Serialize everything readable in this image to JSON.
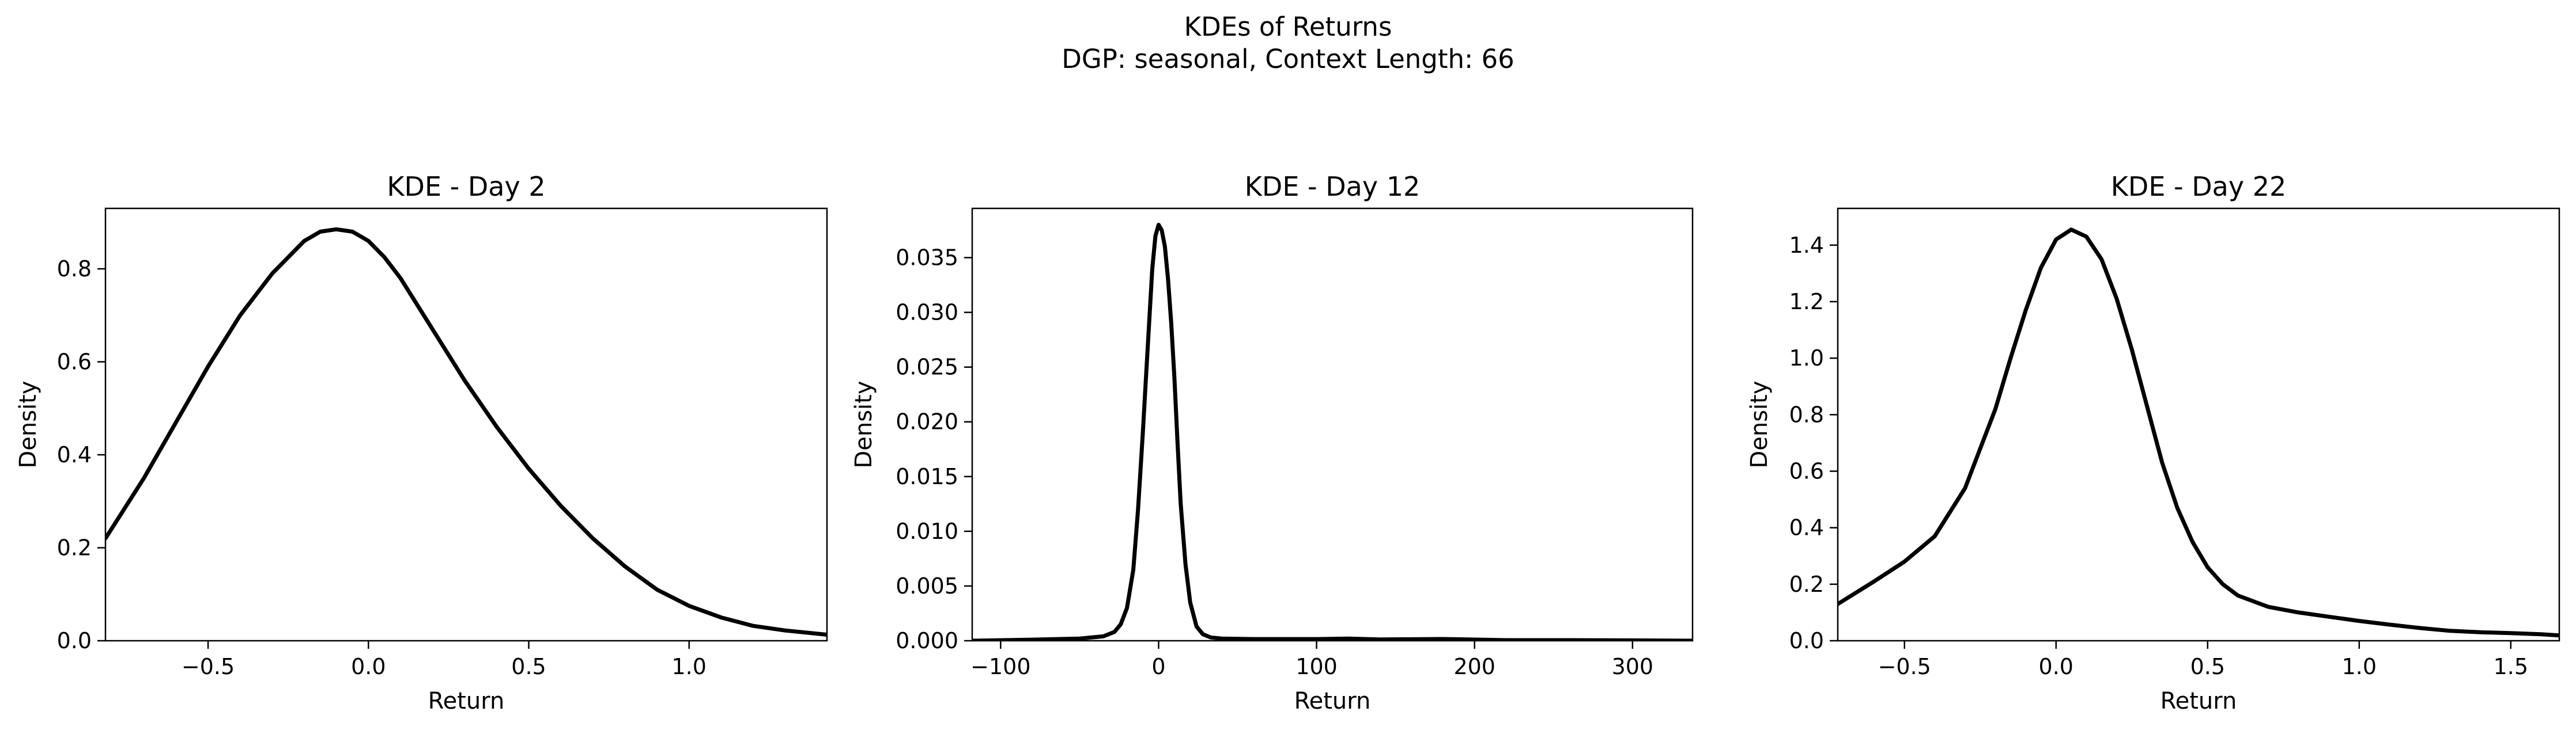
{
  "figure": {
    "title_line1": "KDEs of Returns",
    "title_line2": "DGP: seasonal, Context Length: 66"
  },
  "chart_data": [
    {
      "type": "line",
      "title": "KDE - Day 2",
      "xlabel": "Return",
      "ylabel": "Density",
      "xlim": [
        -0.82,
        1.43
      ],
      "ylim": [
        0,
        0.93
      ],
      "xticks": [
        -0.5,
        0.0,
        0.5,
        1.0
      ],
      "xtick_labels": [
        "−0.5",
        "0.0",
        "0.5",
        "1.0"
      ],
      "yticks": [
        0.0,
        0.2,
        0.4,
        0.6,
        0.8
      ],
      "ytick_labels": [
        "0.0",
        "0.2",
        "0.4",
        "0.6",
        "0.8"
      ],
      "grid": false,
      "line_color": "#000000",
      "series": [
        {
          "x": [
            -0.82,
            -0.7,
            -0.6,
            -0.5,
            -0.4,
            -0.3,
            -0.2,
            -0.15,
            -0.1,
            -0.05,
            0.0,
            0.05,
            0.1,
            0.2,
            0.3,
            0.4,
            0.5,
            0.6,
            0.7,
            0.8,
            0.9,
            1.0,
            1.1,
            1.2,
            1.3,
            1.43
          ],
          "y": [
            0.22,
            0.35,
            0.47,
            0.59,
            0.7,
            0.79,
            0.86,
            0.88,
            0.885,
            0.88,
            0.86,
            0.825,
            0.78,
            0.67,
            0.56,
            0.46,
            0.37,
            0.29,
            0.22,
            0.16,
            0.11,
            0.075,
            0.05,
            0.032,
            0.022,
            0.013
          ]
        }
      ]
    },
    {
      "type": "line",
      "title": "KDE - Day 12",
      "xlabel": "Return",
      "ylabel": "Density",
      "xlim": [
        -118,
        338
      ],
      "ylim": [
        0,
        0.0395
      ],
      "xticks": [
        -100,
        0,
        100,
        200,
        300
      ],
      "xtick_labels": [
        "−100",
        "0",
        "100",
        "200",
        "300"
      ],
      "yticks": [
        0.0,
        0.005,
        0.01,
        0.015,
        0.02,
        0.025,
        0.03,
        0.035
      ],
      "ytick_labels": [
        "0.000",
        "0.005",
        "0.010",
        "0.015",
        "0.020",
        "0.025",
        "0.030",
        "0.035"
      ],
      "grid": false,
      "line_color": "#000000",
      "series": [
        {
          "x": [
            -118,
            -80,
            -50,
            -35,
            -28,
            -24,
            -20,
            -16,
            -13,
            -10,
            -8,
            -6,
            -4,
            -2,
            0,
            2,
            4,
            6,
            8,
            10,
            12,
            14,
            17,
            20,
            24,
            28,
            33,
            40,
            60,
            100,
            120,
            140,
            180,
            220,
            260,
            300,
            338
          ],
          "y": [
            0.0,
            0.0001,
            0.0002,
            0.0004,
            0.0008,
            0.0015,
            0.003,
            0.0065,
            0.012,
            0.019,
            0.024,
            0.029,
            0.034,
            0.037,
            0.038,
            0.0375,
            0.036,
            0.033,
            0.029,
            0.024,
            0.018,
            0.0125,
            0.007,
            0.0035,
            0.0013,
            0.0006,
            0.0003,
            0.0002,
            0.00015,
            0.00015,
            0.0002,
            0.00012,
            0.00016,
            5e-05,
            5e-05,
            3e-05,
            0.0
          ]
        }
      ]
    },
    {
      "type": "line",
      "title": "KDE - Day 22",
      "xlabel": "Return",
      "ylabel": "Density",
      "xlim": [
        -0.72,
        1.66
      ],
      "ylim": [
        0,
        1.53
      ],
      "xticks": [
        -0.5,
        0.0,
        0.5,
        1.0,
        1.5
      ],
      "xtick_labels": [
        "−0.5",
        "0.0",
        "0.5",
        "1.0",
        "1.5"
      ],
      "yticks": [
        0.0,
        0.2,
        0.4,
        0.6,
        0.8,
        1.0,
        1.2,
        1.4
      ],
      "ytick_labels": [
        "0.0",
        "0.2",
        "0.4",
        "0.6",
        "0.8",
        "1.0",
        "1.2",
        "1.4"
      ],
      "grid": false,
      "line_color": "#000000",
      "series": [
        {
          "x": [
            -0.72,
            -0.6,
            -0.5,
            -0.4,
            -0.3,
            -0.2,
            -0.15,
            -0.1,
            -0.05,
            0.0,
            0.05,
            0.1,
            0.15,
            0.2,
            0.25,
            0.3,
            0.35,
            0.4,
            0.45,
            0.5,
            0.55,
            0.6,
            0.7,
            0.8,
            0.9,
            1.0,
            1.1,
            1.2,
            1.3,
            1.4,
            1.5,
            1.6,
            1.66
          ],
          "y": [
            0.13,
            0.21,
            0.28,
            0.37,
            0.54,
            0.82,
            1.0,
            1.17,
            1.32,
            1.42,
            1.455,
            1.43,
            1.35,
            1.21,
            1.03,
            0.83,
            0.63,
            0.47,
            0.35,
            0.26,
            0.2,
            0.16,
            0.12,
            0.1,
            0.085,
            0.07,
            0.057,
            0.045,
            0.035,
            0.03,
            0.027,
            0.023,
            0.019
          ]
        }
      ]
    }
  ]
}
